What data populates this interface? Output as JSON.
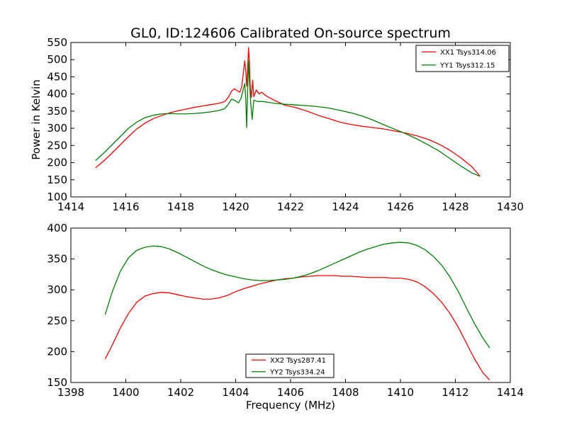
{
  "chart_data": [
    {
      "type": "line",
      "title": "GL0, ID:124606 Calibrated On-source spectrum",
      "xlabel": "",
      "ylabel": "Power in Kelvin",
      "xlim": [
        1414,
        1430
      ],
      "ylim": [
        100,
        550
      ],
      "xticks": [
        1414,
        1416,
        1418,
        1420,
        1422,
        1424,
        1426,
        1428,
        1430
      ],
      "yticks": [
        100,
        150,
        200,
        250,
        300,
        350,
        400,
        450,
        500,
        550
      ],
      "grid": false,
      "legend_position": "top-right",
      "series": [
        {
          "name": "XX1 Tsys314.06",
          "color": "#ff0000",
          "points": [
            [
              1414.9,
              185
            ],
            [
              1415.2,
              205
            ],
            [
              1415.5,
              228
            ],
            [
              1415.8,
              252
            ],
            [
              1416.1,
              276
            ],
            [
              1416.4,
              298
            ],
            [
              1416.7,
              315
            ],
            [
              1417.0,
              328
            ],
            [
              1417.3,
              337
            ],
            [
              1417.6,
              345
            ],
            [
              1417.9,
              351
            ],
            [
              1418.2,
              356
            ],
            [
              1418.5,
              361
            ],
            [
              1418.8,
              365
            ],
            [
              1419.1,
              369
            ],
            [
              1419.4,
              373
            ],
            [
              1419.6,
              378
            ],
            [
              1419.75,
              392
            ],
            [
              1419.85,
              408
            ],
            [
              1419.95,
              415
            ],
            [
              1420.05,
              410
            ],
            [
              1420.15,
              405
            ],
            [
              1420.22,
              420
            ],
            [
              1420.28,
              460
            ],
            [
              1420.33,
              497
            ],
            [
              1420.37,
              465
            ],
            [
              1420.4,
              422
            ],
            [
              1420.44,
              480
            ],
            [
              1420.47,
              535
            ],
            [
              1420.5,
              495
            ],
            [
              1420.53,
              422
            ],
            [
              1420.57,
              390
            ],
            [
              1420.62,
              440
            ],
            [
              1420.66,
              392
            ],
            [
              1420.75,
              412
            ],
            [
              1420.85,
              400
            ],
            [
              1420.95,
              405
            ],
            [
              1421.1,
              395
            ],
            [
              1421.4,
              382
            ],
            [
              1421.8,
              367
            ],
            [
              1422.2,
              360
            ],
            [
              1422.6,
              350
            ],
            [
              1423.0,
              338
            ],
            [
              1423.4,
              328
            ],
            [
              1423.8,
              318
            ],
            [
              1424.2,
              311
            ],
            [
              1424.6,
              306
            ],
            [
              1425.0,
              302
            ],
            [
              1425.4,
              298
            ],
            [
              1425.8,
              292
            ],
            [
              1426.2,
              286
            ],
            [
              1426.6,
              278
            ],
            [
              1427.0,
              268
            ],
            [
              1427.4,
              254
            ],
            [
              1427.8,
              236
            ],
            [
              1428.2,
              214
            ],
            [
              1428.6,
              188
            ],
            [
              1428.9,
              160
            ]
          ]
        },
        {
          "name": "YY1 Tsys312.15",
          "color": "#008000",
          "points": [
            [
              1414.9,
              206
            ],
            [
              1415.2,
              228
            ],
            [
              1415.5,
              252
            ],
            [
              1415.8,
              276
            ],
            [
              1416.1,
              300
            ],
            [
              1416.4,
              318
            ],
            [
              1416.7,
              331
            ],
            [
              1417.0,
              338
            ],
            [
              1417.3,
              342
            ],
            [
              1417.6,
              343
            ],
            [
              1417.9,
              342
            ],
            [
              1418.2,
              342
            ],
            [
              1418.5,
              343
            ],
            [
              1418.8,
              345
            ],
            [
              1419.1,
              348
            ],
            [
              1419.4,
              352
            ],
            [
              1419.6,
              357
            ],
            [
              1419.75,
              372
            ],
            [
              1419.85,
              385
            ],
            [
              1419.95,
              382
            ],
            [
              1420.1,
              374
            ],
            [
              1420.2,
              388
            ],
            [
              1420.28,
              415
            ],
            [
              1420.33,
              430
            ],
            [
              1420.37,
              382
            ],
            [
              1420.4,
              302
            ],
            [
              1420.44,
              420
            ],
            [
              1420.47,
              498
            ],
            [
              1420.5,
              440
            ],
            [
              1420.55,
              372
            ],
            [
              1420.6,
              326
            ],
            [
              1420.66,
              382
            ],
            [
              1420.8,
              378
            ],
            [
              1421.0,
              378
            ],
            [
              1421.4,
              373
            ],
            [
              1421.8,
              370
            ],
            [
              1422.2,
              368
            ],
            [
              1422.6,
              366
            ],
            [
              1423.0,
              363
            ],
            [
              1423.4,
              359
            ],
            [
              1423.8,
              352
            ],
            [
              1424.2,
              345
            ],
            [
              1424.6,
              336
            ],
            [
              1425.0,
              324
            ],
            [
              1425.4,
              310
            ],
            [
              1425.8,
              297
            ],
            [
              1426.2,
              284
            ],
            [
              1426.6,
              269
            ],
            [
              1427.0,
              252
            ],
            [
              1427.4,
              234
            ],
            [
              1427.8,
              212
            ],
            [
              1428.2,
              190
            ],
            [
              1428.6,
              170
            ],
            [
              1428.9,
              160
            ]
          ]
        }
      ]
    },
    {
      "type": "line",
      "title": "",
      "xlabel": "Frequency (MHz)",
      "ylabel": "",
      "xlim": [
        1398,
        1414
      ],
      "ylim": [
        150,
        400
      ],
      "xticks": [
        1398,
        1400,
        1402,
        1404,
        1406,
        1408,
        1410,
        1412,
        1414
      ],
      "yticks": [
        150,
        200,
        250,
        300,
        350,
        400
      ],
      "grid": false,
      "legend_position": "bottom-center",
      "series": [
        {
          "name": "XX2 Tsys287.41",
          "color": "#ff0000",
          "points": [
            [
              1399.25,
              188
            ],
            [
              1399.5,
              210
            ],
            [
              1399.8,
              238
            ],
            [
              1400.1,
              262
            ],
            [
              1400.4,
              280
            ],
            [
              1400.7,
              290
            ],
            [
              1401.0,
              294
            ],
            [
              1401.3,
              296
            ],
            [
              1401.6,
              295
            ],
            [
              1401.9,
              292
            ],
            [
              1402.2,
              289
            ],
            [
              1402.5,
              287
            ],
            [
              1402.8,
              285
            ],
            [
              1403.1,
              285
            ],
            [
              1403.4,
              287
            ],
            [
              1403.7,
              291
            ],
            [
              1404.0,
              297
            ],
            [
              1404.3,
              302
            ],
            [
              1404.6,
              306
            ],
            [
              1404.9,
              310
            ],
            [
              1405.2,
              313
            ],
            [
              1405.5,
              316
            ],
            [
              1405.8,
              318
            ],
            [
              1406.1,
              319
            ],
            [
              1406.4,
              321
            ],
            [
              1406.7,
              322
            ],
            [
              1407.0,
              323
            ],
            [
              1407.3,
              323
            ],
            [
              1407.6,
              323
            ],
            [
              1407.9,
              322
            ],
            [
              1408.2,
              322
            ],
            [
              1408.5,
              321
            ],
            [
              1408.8,
              320
            ],
            [
              1409.1,
              320
            ],
            [
              1409.4,
              320
            ],
            [
              1409.7,
              319
            ],
            [
              1410.0,
              319
            ],
            [
              1410.3,
              317
            ],
            [
              1410.6,
              313
            ],
            [
              1410.9,
              305
            ],
            [
              1411.2,
              294
            ],
            [
              1411.5,
              280
            ],
            [
              1411.8,
              262
            ],
            [
              1412.1,
              240
            ],
            [
              1412.4,
              214
            ],
            [
              1412.7,
              188
            ],
            [
              1413.0,
              166
            ],
            [
              1413.25,
              154
            ]
          ]
        },
        {
          "name": "YY2 Tsys334.24",
          "color": "#008000",
          "points": [
            [
              1399.25,
              260
            ],
            [
              1399.5,
              296
            ],
            [
              1399.8,
              330
            ],
            [
              1400.1,
              352
            ],
            [
              1400.4,
              364
            ],
            [
              1400.7,
              369
            ],
            [
              1401.0,
              371
            ],
            [
              1401.3,
              370
            ],
            [
              1401.6,
              366
            ],
            [
              1401.9,
              360
            ],
            [
              1402.2,
              353
            ],
            [
              1402.5,
              346
            ],
            [
              1402.8,
              339
            ],
            [
              1403.1,
              333
            ],
            [
              1403.4,
              328
            ],
            [
              1403.7,
              324
            ],
            [
              1404.0,
              321
            ],
            [
              1404.3,
              318
            ],
            [
              1404.6,
              316
            ],
            [
              1404.9,
              315
            ],
            [
              1405.2,
              315
            ],
            [
              1405.5,
              316
            ],
            [
              1405.8,
              317
            ],
            [
              1406.1,
              319
            ],
            [
              1406.4,
              322
            ],
            [
              1406.7,
              326
            ],
            [
              1407.0,
              331
            ],
            [
              1407.3,
              337
            ],
            [
              1407.6,
              343
            ],
            [
              1407.9,
              349
            ],
            [
              1408.2,
              355
            ],
            [
              1408.5,
              361
            ],
            [
              1408.8,
              366
            ],
            [
              1409.1,
              370
            ],
            [
              1409.4,
              374
            ],
            [
              1409.7,
              376
            ],
            [
              1410.0,
              377
            ],
            [
              1410.3,
              376
            ],
            [
              1410.6,
              372
            ],
            [
              1410.9,
              365
            ],
            [
              1411.2,
              354
            ],
            [
              1411.5,
              340
            ],
            [
              1411.8,
              321
            ],
            [
              1412.1,
              298
            ],
            [
              1412.4,
              271
            ],
            [
              1412.7,
              245
            ],
            [
              1413.0,
              222
            ],
            [
              1413.25,
              206
            ]
          ]
        }
      ]
    }
  ]
}
